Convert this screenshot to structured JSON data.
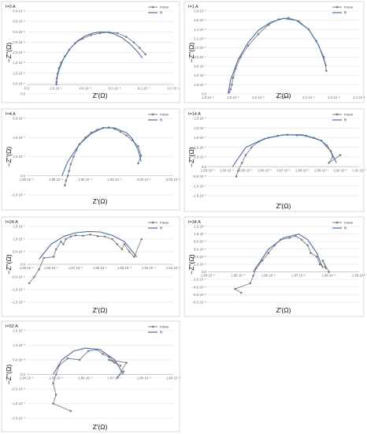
{
  "colors": {
    "meas": "#7f7f7f",
    "fit": "#4a6fa5",
    "grid": "#d9d9d9",
    "axis": "#bfbfbf"
  },
  "legend": {
    "meas": "meas",
    "fit": "fit"
  },
  "chart_data": [
    {
      "type": "line",
      "condition": "I=0 A",
      "xlabel": "Z'(Ω)",
      "ylabel": "−Z''(Ω)",
      "xlim": [
        0.0,
        0.0001
      ],
      "ylim": [
        -5e-06,
        4e-05
      ],
      "xticks": [
        "0.0",
        "2.0·10⁻⁵",
        "4.0·10⁻⁵",
        "6.0·10⁻⁵",
        "8.0·10⁻⁵",
        "1.0·10⁻⁴"
      ],
      "yticks": [
        "0.0",
        "5.0·10⁻⁶",
        "1.0·10⁻⁵",
        "1.5·10⁻⁵",
        "2.0·10⁻⁵",
        "2.5·10⁻⁵",
        "3.0·10⁻⁵",
        "3.5·10⁻⁵",
        "4.0·10⁻⁵"
      ],
      "series": [
        {
          "name": "meas",
          "x": [
            2.02e-05,
            2.03e-05,
            2.05e-05,
            2.1e-05,
            2.2e-05,
            2.35e-05,
            2.6e-05,
            2.9e-05,
            3.3e-05,
            3.8e-05,
            4.4e-05,
            5e-05,
            5.6e-05,
            6.2e-05,
            6.8e-05,
            7.3e-05,
            7.7e-05,
            8.1e-05
          ],
          "y": [
            2e-07,
            1.5e-06,
            3.5e-06,
            6e-06,
            9e-06,
            1.2e-05,
            1.55e-05,
            1.9e-05,
            2.25e-05,
            2.5e-05,
            2.7e-05,
            2.8e-05,
            2.85e-05,
            2.8e-05,
            2.6e-05,
            2.3e-05,
            2e-05,
            1.65e-05
          ]
        },
        {
          "name": "fit",
          "x": [
            2e-05,
            2.05e-05,
            2.2e-05,
            2.5e-05,
            3e-05,
            3.5e-05,
            4e-05,
            4.5e-05,
            5e-05,
            5.5e-05,
            6e-05,
            6.5e-05,
            7e-05,
            7.5e-05,
            7.9e-05
          ],
          "y": [
            0.0,
            3e-06,
            8e-06,
            1.4e-05,
            2e-05,
            2.4e-05,
            2.65e-05,
            2.8e-05,
            2.87e-05,
            2.85e-05,
            2.75e-05,
            2.55e-05,
            2.25e-05,
            1.85e-05,
            1.45e-05
          ]
        }
      ]
    },
    {
      "type": "line",
      "condition": "I=1 A",
      "xlabel": "Z'(Ω)",
      "ylabel": "−Z''(Ω)",
      "xlim": [
        1.8e-05,
        2.4e-05
      ],
      "ylim": [
        0.0,
        1.8e-06
      ],
      "xticks": [
        "1.8·10⁻⁵",
        "1.9·10⁻⁵",
        "2.0·10⁻⁵",
        "2.1·10⁻⁵",
        "2.2·10⁻⁵",
        "2.3·10⁻⁵",
        "2.4·10⁻⁵"
      ],
      "yticks": [
        "0.0",
        "2.0·10⁻⁷",
        "4.0·10⁻⁷",
        "6.0·10⁻⁷",
        "8.0·10⁻⁷",
        "1.0·10⁻⁶",
        "1.2·10⁻⁶",
        "1.4·10⁻⁶",
        "1.6·10⁻⁶",
        "1.8·10⁻⁶"
      ],
      "series": [
        {
          "name": "meas",
          "x": [
            1.885e-05,
            1.89e-05,
            1.895e-05,
            1.9e-05,
            1.91e-05,
            1.93e-05,
            1.96e-05,
            2e-05,
            2.04e-05,
            2.08e-05,
            2.12e-05,
            2.16e-05,
            2.2e-05,
            2.23e-05,
            2.26e-05,
            2.27e-05
          ],
          "y": [
            4e-08,
            1e-07,
            2e-07,
            3.5e-07,
            5.5e-07,
            8e-07,
            1.05e-06,
            1.3e-06,
            1.5e-06,
            1.62e-06,
            1.65e-06,
            1.58e-06,
            1.4e-06,
            1.15e-06,
            8e-07,
            5e-07
          ]
        },
        {
          "name": "fit",
          "x": [
            1.88e-05,
            1.89e-05,
            1.92e-05,
            1.96e-05,
            2e-05,
            2.05e-05,
            2.1e-05,
            2.15e-05,
            2.2e-05,
            2.24e-05,
            2.27e-05
          ],
          "y": [
            0.0,
            3e-07,
            7.5e-07,
            1.12e-06,
            1.38e-06,
            1.56e-06,
            1.64e-06,
            1.6e-06,
            1.4e-06,
            1.05e-06,
            6e-07
          ]
        }
      ]
    },
    {
      "type": "line",
      "condition": "I=4 A",
      "xlabel": "Z'(Ω)",
      "ylabel": "−Z''(Ω)",
      "xlim": [
        1.8e-05,
        2.05e-05
      ],
      "ylim": [
        -2e-07,
        6e-07
      ],
      "xticks": [
        "1.80·10⁻⁵",
        "1.85·10⁻⁵",
        "1.90·10⁻⁵",
        "1.95·10⁻⁵",
        "2.00·10⁻⁵",
        "2.05·10⁻⁵"
      ],
      "yticks": [
        "−2.0·10⁻⁷",
        "0.0",
        "2.0·10⁻⁷",
        "4.0·10⁻⁷",
        "6.0·10⁻⁷"
      ],
      "series": [
        {
          "name": "meas",
          "x": [
            1.865e-05,
            1.867e-05,
            1.87e-05,
            1.872e-05,
            1.875e-05,
            1.88e-05,
            1.885e-05,
            1.89e-05,
            1.9e-05,
            1.91e-05,
            1.92e-05,
            1.93e-05,
            1.94e-05,
            1.95e-05,
            1.96e-05,
            1.97e-05,
            1.98e-05,
            1.99e-05,
            1.995e-05,
            1.99e-05
          ],
          "y": [
            -1e-07,
            -5e-08,
            0.0,
            5e-08,
            1.2e-07,
            2e-07,
            2.7e-07,
            3.3e-07,
            4e-07,
            4.5e-07,
            4.8e-07,
            5e-07,
            5.05e-07,
            4.9e-07,
            4.6e-07,
            4.2e-07,
            3.7e-07,
            3.1e-07,
            2.1e-07,
            1.3e-07
          ]
        },
        {
          "name": "fit",
          "x": [
            1.86e-05,
            1.87e-05,
            1.89e-05,
            1.91e-05,
            1.93e-05,
            1.95e-05,
            1.97e-05,
            1.98e-05,
            1.99e-05,
            1.995e-05
          ],
          "y": [
            0.0,
            1.5e-07,
            3.3e-07,
            4.4e-07,
            5e-07,
            5e-07,
            4.5e-07,
            3.9e-07,
            2.7e-07,
            1.5e-07
          ]
        }
      ]
    },
    {
      "type": "line",
      "condition": "I=14 A",
      "xlabel": "Z'(Ω)",
      "ylabel": "−Z''(Ω)",
      "xlim": [
        1.83e-05,
        1.91e-05
      ],
      "ylim": [
        -1.5e-07,
        2.5e-07
      ],
      "xticks": [
        "1.83·10⁻⁵",
        "1.84·10⁻⁵",
        "1.85·10⁻⁵",
        "1.86·10⁻⁵",
        "1.87·10⁻⁵",
        "1.88·10⁻⁵",
        "1.89·10⁻⁵",
        "1.90·10⁻⁵",
        "1.91·10⁻⁵"
      ],
      "yticks": [
        "−1.5·10⁻⁷",
        "−1.0·10⁻⁷",
        "−5.0·10⁻⁸",
        "0.0",
        "5.0·10⁻⁸",
        "1.0·10⁻⁷",
        "1.5·10⁻⁷",
        "2.0·10⁻⁷",
        "2.5·10⁻⁷"
      ],
      "series": [
        {
          "name": "meas",
          "x": [
            1.845e-05,
            1.846e-05,
            1.848e-05,
            1.85e-05,
            1.853e-05,
            1.857e-05,
            1.862e-05,
            1.867e-05,
            1.872e-05,
            1.877e-05,
            1.882e-05,
            1.886e-05,
            1.89e-05,
            1.893e-05,
            1.895e-05,
            1.896e-05,
            1.894e-05,
            1.9e-05
          ],
          "y": [
            -5e-08,
            -2e-08,
            2e-08,
            6e-08,
            1e-07,
            1.3e-07,
            1.5e-07,
            1.6e-07,
            1.65e-07,
            1.63e-07,
            1.6e-07,
            1.5e-07,
            1.35e-07,
            1.1e-07,
            8e-08,
            5e-08,
            2e-08,
            6e-08
          ]
        },
        {
          "name": "fit",
          "x": [
            1.843e-05,
            1.85e-05,
            1.86e-05,
            1.87e-05,
            1.88e-05,
            1.89e-05,
            1.895e-05,
            1.898e-05
          ],
          "y": [
            0.0,
            1e-07,
            1.45e-07,
            1.65e-07,
            1.65e-07,
            1.35e-07,
            8e-08,
            2e-08
          ]
        }
      ]
    },
    {
      "type": "line",
      "condition": "I=24 A",
      "xlabel": "Z'(Ω)",
      "ylabel": "−Z''(Ω)",
      "xlim": [
        1.85e-05,
        1.91e-05
      ],
      "ylim": [
        -1.5e-07,
        1.5e-07
      ],
      "xticks": [
        "1.85·10⁻⁵",
        "1.86·10⁻⁵",
        "1.87·10⁻⁵",
        "1.88·10⁻⁵",
        "1.89·10⁻⁵",
        "1.90·10⁻⁵",
        "1.91·10⁻⁵"
      ],
      "yticks": [
        "−1.5·10⁻⁷",
        "−1.0·10⁻⁷",
        "−5.0·10⁻⁸",
        "0.0",
        "5.0·10⁻⁸",
        "1.0·10⁻⁷",
        "1.5·10⁻⁷"
      ],
      "series": [
        {
          "name": "meas",
          "x": [
            1.851e-05,
            1.853e-05,
            1.855e-05,
            1.857e-05,
            1.861e-05,
            1.862e-05,
            1.864e-05,
            1.865e-05,
            1.866e-05,
            1.868e-05,
            1.87e-05,
            1.873e-05,
            1.876e-05,
            1.879e-05,
            1.882e-05,
            1.885e-05,
            1.887e-05,
            1.889e-05,
            1.89e-05,
            1.892e-05,
            1.894e-05,
            1.897e-05
          ],
          "y": [
            -7.5e-08,
            -5e-08,
            -2e-08,
            2.5e-08,
            3e-08,
            6e-08,
            9e-08,
            8e-08,
            1e-07,
            1.1e-07,
            1.15e-07,
            1.13e-07,
            1.18e-07,
            1.12e-07,
            1.1e-07,
            1e-07,
            8e-08,
            6e-08,
            8e-08,
            5e-08,
            3e-08,
            1e-07
          ]
        },
        {
          "name": "fit",
          "x": [
            1.855e-05,
            1.86e-05,
            1.865e-05,
            1.87e-05,
            1.875e-05,
            1.88e-05,
            1.885e-05,
            1.89e-05,
            1.895e-05
          ],
          "y": [
            2e-08,
            8e-08,
            1.1e-07,
            1.25e-07,
            1.3e-07,
            1.28e-07,
            1.15e-07,
            9e-08,
            3e-08
          ]
        }
      ]
    },
    {
      "type": "line",
      "condition": "I=34 A",
      "xlabel": "Z'(Ω)",
      "ylabel": "−Z''(Ω)",
      "xlim": [
        1.84e-05,
        1.89e-05
      ],
      "ylim": [
        -8e-08,
        1.2e-07
      ],
      "xticks": [
        "1.84·10⁻⁵",
        "1.85·10⁻⁵",
        "1.86·10⁻⁵",
        "1.87·10⁻⁵",
        "1.88·10⁻⁵",
        "1.89·10⁻⁵"
      ],
      "yticks": [
        "−8.0·10⁻⁸",
        "−6.0·10⁻⁸",
        "−4.0·10⁻⁸",
        "−2.0·10⁻⁸",
        "0.0",
        "2.0·10⁻⁸",
        "4.0·10⁻⁸",
        "6.0·10⁻⁸",
        "8.0·10⁻⁸",
        "1.0·10⁻⁷",
        "1.2·10⁻⁷"
      ],
      "series": [
        {
          "name": "meas",
          "x": [
            1.851e-05,
            1.849e-05,
            1.854e-05,
            1.855e-05,
            1.856e-05,
            1.858e-05,
            1.86e-05,
            1.862e-05,
            1.864e-05,
            1.867e-05,
            1.869e-05,
            1.871e-05,
            1.873e-05,
            1.874e-05,
            1.876e-05,
            1.877e-05,
            1.879e-05,
            1.878e-05,
            1.88e-05
          ],
          "y": [
            -5.5e-08,
            -4.5e-08,
            -3e-08,
            -1e-08,
            1e-08,
            3e-08,
            5e-08,
            7e-08,
            8.5e-08,
            9e-08,
            9.5e-08,
            8.5e-08,
            7e-08,
            5e-08,
            4e-08,
            2e-08,
            1e-08,
            3e-08,
            0.0
          ]
        },
        {
          "name": "fit",
          "x": [
            1.855e-05,
            1.86e-05,
            1.865e-05,
            1.87e-05,
            1.873e-05,
            1.876e-05,
            1.878e-05
          ],
          "y": [
            0.0,
            6e-08,
            9e-08,
            1e-07,
            8.5e-08,
            5e-08,
            1e-08
          ]
        }
      ]
    },
    {
      "type": "line",
      "condition": "I=52 A",
      "xlabel": "Z'(Ω)",
      "ylabel": "−Z''(Ω)",
      "xlim": [
        1.84e-05,
        1.89e-05
      ],
      "ylim": [
        -1.5e-07,
        1.5e-07
      ],
      "xticks": [
        "1.84·10⁻⁵",
        "1.85·10⁻⁵",
        "1.86·10⁻⁵",
        "1.87·10⁻⁵",
        "1.88·10⁻⁵",
        "1.89·10⁻⁵"
      ],
      "yticks": [
        "−1.5·10⁻⁷",
        "−1.0·10⁻⁷",
        "−5.0·10⁻⁸",
        "0.0",
        "5.0·10⁻⁸",
        "1.0·10⁻⁷",
        "1.5·10⁻⁷"
      ],
      "series": [
        {
          "name": "meas",
          "x": [
            1.855e-05,
            1.849e-05,
            1.85e-05,
            1.849e-05,
            1.85e-05,
            1.851e-05,
            1.854e-05,
            1.858e-05,
            1.861e-05,
            1.864e-05,
            1.866e-05,
            1.868e-05,
            1.87e-05,
            1.872e-05,
            1.868e-05,
            1.874e-05,
            1.871e-05,
            1.873e-05
          ],
          "y": [
            -1.25e-07,
            -1e-07,
            -7e-08,
            -3e-08,
            0.0,
            3e-08,
            5.5e-08,
            5e-08,
            8e-08,
            8.5e-08,
            7e-08,
            6e-08,
            4e-08,
            3e-08,
            5e-08,
            4e-08,
            -1e-08,
            1e-08
          ]
        },
        {
          "name": "fit",
          "x": [
            1.849e-05,
            1.852e-05,
            1.856e-05,
            1.86e-05,
            1.865e-05,
            1.87e-05,
            1.873e-05
          ],
          "y": [
            0.0,
            5e-08,
            8e-08,
            9e-08,
            8.5e-08,
            5e-08,
            0.0
          ]
        }
      ]
    }
  ]
}
